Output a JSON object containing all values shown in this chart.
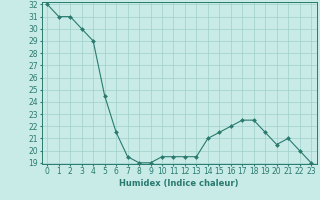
{
  "x": [
    0,
    1,
    2,
    3,
    4,
    5,
    6,
    7,
    8,
    9,
    10,
    11,
    12,
    13,
    14,
    15,
    16,
    17,
    18,
    19,
    20,
    21,
    22,
    23
  ],
  "y": [
    32,
    31,
    31,
    30,
    29,
    24.5,
    21.5,
    19.5,
    19,
    19,
    19.5,
    19.5,
    19.5,
    19.5,
    21,
    21.5,
    22,
    22.5,
    22.5,
    21.5,
    20.5,
    21,
    20,
    19
  ],
  "line_color": "#2a7a6e",
  "marker_color": "#2a7a6e",
  "bg_color": "#c8ebe8",
  "grid_color": "#a0d0cc",
  "xlabel": "Humidex (Indice chaleur)",
  "ylim": [
    19,
    32
  ],
  "xlim": [
    -0.5,
    23.5
  ],
  "yticks": [
    19,
    20,
    21,
    22,
    23,
    24,
    25,
    26,
    27,
    28,
    29,
    30,
    31,
    32
  ],
  "xticks": [
    0,
    1,
    2,
    3,
    4,
    5,
    6,
    7,
    8,
    9,
    10,
    11,
    12,
    13,
    14,
    15,
    16,
    17,
    18,
    19,
    20,
    21,
    22,
    23
  ],
  "label_fontsize": 6,
  "tick_fontsize": 5.5
}
